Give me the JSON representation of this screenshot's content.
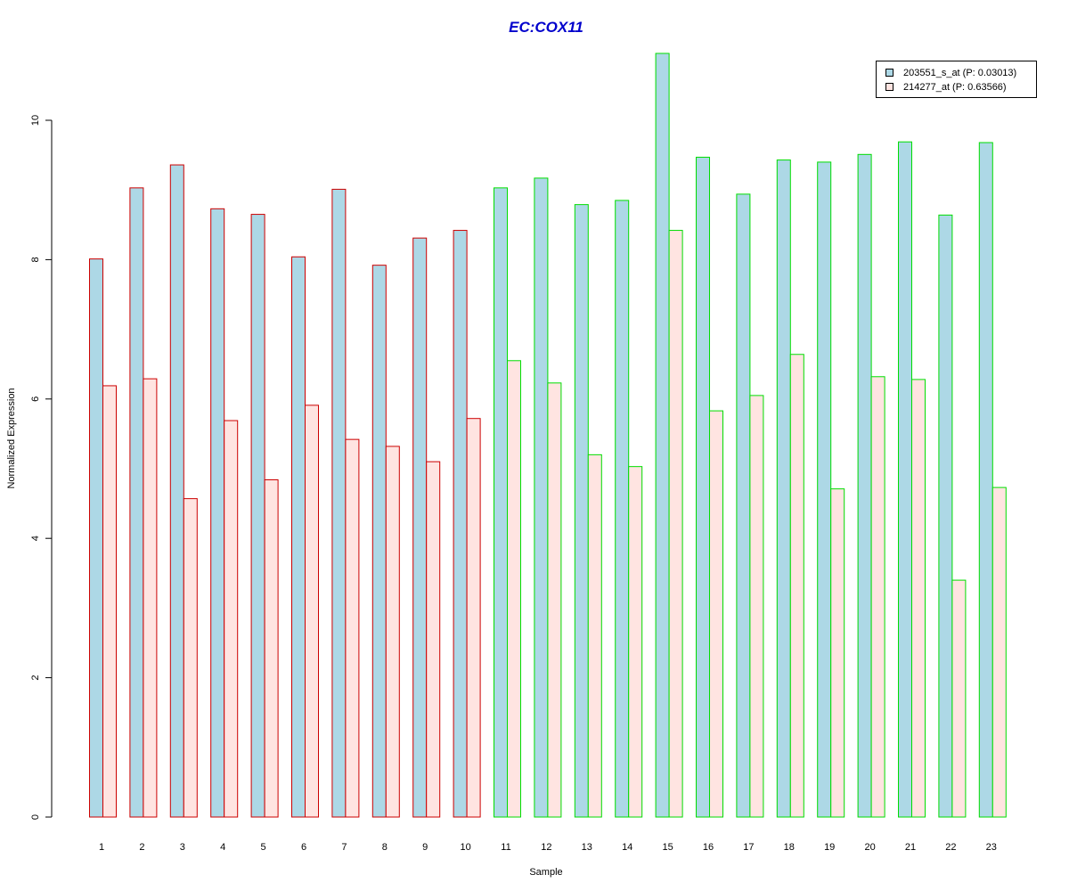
{
  "chart_data": {
    "type": "bar",
    "title": "EC:COX11",
    "xlabel": "Sample",
    "ylabel": "Normalized Expression",
    "ylim": [
      0,
      11
    ],
    "yticks": [
      "0",
      "2",
      "4",
      "6",
      "8",
      "10"
    ],
    "grid": false,
    "legend_position": "top-right",
    "categories": [
      "1",
      "2",
      "3",
      "4",
      "5",
      "6",
      "7",
      "8",
      "9",
      "10",
      "11",
      "12",
      "13",
      "14",
      "15",
      "16",
      "17",
      "18",
      "19",
      "20",
      "21",
      "22",
      "23"
    ],
    "series": [
      {
        "name": "203551_s_at (P: 0.03013)",
        "fill": "#add8e6",
        "values": [
          8.01,
          9.03,
          9.36,
          8.73,
          8.65,
          8.04,
          9.01,
          7.92,
          8.31,
          8.42,
          9.03,
          9.17,
          8.79,
          8.85,
          10.96,
          9.47,
          8.94,
          9.43,
          9.4,
          9.51,
          9.69,
          8.64,
          9.68
        ]
      },
      {
        "name": "214277_at (P: 0.63566)",
        "fill": "#ffe4e1",
        "values": [
          6.19,
          6.29,
          4.57,
          5.69,
          4.84,
          5.91,
          5.42,
          5.32,
          5.1,
          5.72,
          6.55,
          6.23,
          5.2,
          5.03,
          8.42,
          5.83,
          6.05,
          6.64,
          4.71,
          6.32,
          6.28,
          3.4,
          4.73
        ]
      }
    ],
    "group_border_colors": [
      "#cc0000",
      "#cc0000",
      "#cc0000",
      "#cc0000",
      "#cc0000",
      "#cc0000",
      "#cc0000",
      "#cc0000",
      "#cc0000",
      "#cc0000",
      "#00dd00",
      "#00dd00",
      "#00dd00",
      "#00dd00",
      "#00dd00",
      "#00dd00",
      "#00dd00",
      "#00dd00",
      "#00dd00",
      "#00dd00",
      "#00dd00",
      "#00dd00",
      "#00dd00"
    ],
    "colors": {
      "title": "#0000cc",
      "axis": "#000000",
      "legend_border": "#000000"
    }
  }
}
